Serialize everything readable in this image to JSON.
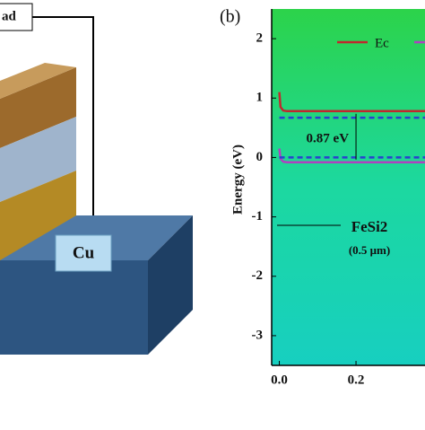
{
  "schematic": {
    "labels": [
      "ad",
      "Cu"
    ]
  },
  "chart_data": {
    "type": "line",
    "panel_label": "(b)",
    "y_label": "Energy (eV)",
    "x": [
      0,
      0.003,
      0.01,
      0.02,
      0.38
    ],
    "series": [
      {
        "name": "Ec",
        "color": "#c0282d",
        "values": [
          1.1,
          0.85,
          0.79,
          0.78,
          0.78
        ]
      },
      {
        "color": "#b040c0",
        "values": [
          0.15,
          -0.02,
          -0.07,
          -0.08,
          -0.08
        ]
      },
      {
        "color": "#2a3fd0",
        "dashed": true,
        "values": [
          0.67,
          0.67,
          0.67,
          0.67,
          0.67
        ]
      },
      {
        "color": "#2a3fd0",
        "dashed": true,
        "values": [
          0,
          0,
          0,
          0,
          0
        ]
      }
    ],
    "annotations": [
      "0.87 eV",
      "FeSi2",
      "(0.5 μm)"
    ],
    "xlim": [
      -0.02,
      0.38
    ],
    "ylim": [
      -3.5,
      2.5
    ],
    "xticks": [
      {
        "value": 0,
        "label": "0.0"
      },
      {
        "value": 0.2,
        "label": "0.2"
      }
    ],
    "yticks": [
      2,
      1,
      0,
      -1,
      -2,
      -3
    ]
  }
}
